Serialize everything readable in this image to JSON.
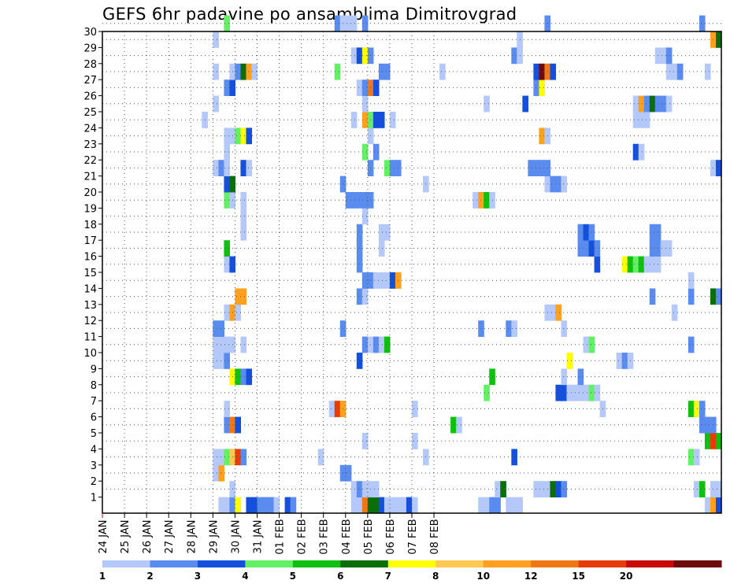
{
  "colors": {
    "1": "#b4c8fa",
    "2": "#5a8cf0",
    "3": "#1450dc",
    "4": "#64f064",
    "5": "#10c010",
    "6": "#0a6e0a",
    "7": "#ffff00",
    "8": "#ffc850",
    "9": "#ffa020",
    "10": "#f07814",
    "11": "#e63c0a",
    "12": "#c80a0a",
    "13": "#6e0a0a"
  },
  "chart_data": {
    "type": "heatmap",
    "title": "GEFS 6hr padavine po ansamblima Dimitrovgrad",
    "xlabel": "",
    "ylabel": "",
    "x_tick_labels": [
      "24 JAN",
      "25 JAN",
      "26 JAN",
      "27 JAN",
      "28 JAN",
      "29 JAN",
      "30 JAN",
      "31 JAN",
      "01 FEB",
      "02 FEB",
      "03 FEB",
      "04 FEB",
      "05 FEB",
      "06 FEB",
      "07 FEB",
      "08 FEB"
    ],
    "y_tick_labels": [
      "1",
      "2",
      "3",
      "4",
      "5",
      "6",
      "7",
      "8",
      "9",
      "10",
      "11",
      "12",
      "13",
      "14",
      "15",
      "16",
      "17",
      "18",
      "19",
      "20",
      "21",
      "22",
      "23",
      "24",
      "25",
      "26",
      "27",
      "28",
      "29",
      "30"
    ],
    "colorbar": {
      "thresholds": [
        "1",
        "2",
        "3",
        "4",
        "5",
        "6",
        "7",
        "8",
        "10",
        "12",
        "15",
        "20"
      ]
    },
    "grid": true,
    "cell_note": "each cell = one 6-hour step (index 0 = 24 JAN 00z) for one ensemble member; value = color class (1..13) per colorbar",
    "cells": [
      [
        0,
        21,
        1
      ],
      [
        0,
        22,
        1
      ],
      [
        0,
        23,
        2
      ],
      [
        0,
        24,
        7
      ],
      [
        0,
        26,
        3
      ],
      [
        0,
        27,
        3
      ],
      [
        0,
        28,
        2
      ],
      [
        0,
        29,
        2
      ],
      [
        0,
        30,
        2
      ],
      [
        0,
        31,
        1
      ],
      [
        0,
        33,
        3
      ],
      [
        0,
        34,
        2
      ],
      [
        0,
        45,
        1
      ],
      [
        0,
        46,
        1
      ],
      [
        0,
        47,
        10
      ],
      [
        0,
        48,
        6
      ],
      [
        0,
        49,
        6
      ],
      [
        0,
        50,
        3
      ],
      [
        0,
        51,
        1
      ],
      [
        0,
        52,
        1
      ],
      [
        0,
        53,
        1
      ],
      [
        0,
        54,
        1
      ],
      [
        0,
        55,
        3
      ],
      [
        0,
        56,
        1
      ],
      [
        0,
        68,
        1
      ],
      [
        0,
        69,
        1
      ],
      [
        0,
        70,
        2
      ],
      [
        0,
        71,
        2
      ],
      [
        0,
        73,
        1
      ],
      [
        0,
        74,
        1
      ],
      [
        0,
        75,
        1
      ],
      [
        0,
        109,
        1
      ],
      [
        0,
        110,
        9
      ],
      [
        0,
        111,
        3
      ],
      [
        1,
        23,
        1
      ],
      [
        1,
        45,
        1
      ],
      [
        1,
        46,
        2
      ],
      [
        1,
        47,
        1
      ],
      [
        1,
        48,
        1
      ],
      [
        1,
        49,
        1
      ],
      [
        1,
        71,
        1
      ],
      [
        1,
        72,
        6
      ],
      [
        1,
        78,
        1
      ],
      [
        1,
        79,
        1
      ],
      [
        1,
        80,
        1
      ],
      [
        1,
        81,
        6
      ],
      [
        1,
        82,
        3
      ],
      [
        1,
        83,
        2
      ],
      [
        1,
        107,
        1
      ],
      [
        1,
        108,
        5
      ],
      [
        1,
        110,
        1
      ],
      [
        1,
        111,
        1
      ],
      [
        2,
        20,
        1
      ],
      [
        2,
        21,
        9
      ],
      [
        2,
        43,
        2
      ],
      [
        2,
        44,
        2
      ],
      [
        3,
        20,
        1
      ],
      [
        3,
        21,
        1
      ],
      [
        3,
        22,
        4
      ],
      [
        3,
        23,
        8
      ],
      [
        3,
        24,
        11
      ],
      [
        3,
        25,
        2
      ],
      [
        3,
        39,
        1
      ],
      [
        3,
        58,
        1
      ],
      [
        3,
        74,
        3
      ],
      [
        3,
        106,
        4
      ],
      [
        3,
        107,
        1
      ],
      [
        4,
        47,
        1
      ],
      [
        4,
        56,
        1
      ],
      [
        4,
        109,
        5
      ],
      [
        4,
        110,
        11
      ],
      [
        4,
        111,
        5
      ],
      [
        5,
        22,
        2
      ],
      [
        5,
        23,
        10
      ],
      [
        5,
        24,
        3
      ],
      [
        5,
        63,
        5
      ],
      [
        5,
        64,
        1
      ],
      [
        5,
        108,
        2
      ],
      [
        5,
        109,
        2
      ],
      [
        5,
        110,
        2
      ],
      [
        6,
        22,
        1
      ],
      [
        6,
        41,
        1
      ],
      [
        6,
        42,
        11
      ],
      [
        6,
        43,
        9
      ],
      [
        6,
        56,
        1
      ],
      [
        6,
        90,
        1
      ],
      [
        6,
        106,
        5
      ],
      [
        6,
        107,
        7
      ],
      [
        6,
        108,
        2
      ],
      [
        7,
        69,
        4
      ],
      [
        7,
        82,
        3
      ],
      [
        7,
        83,
        3
      ],
      [
        7,
        84,
        1
      ],
      [
        7,
        85,
        1
      ],
      [
        7,
        86,
        1
      ],
      [
        7,
        87,
        1
      ],
      [
        7,
        88,
        4
      ],
      [
        7,
        89,
        1
      ],
      [
        8,
        23,
        7
      ],
      [
        8,
        24,
        5
      ],
      [
        8,
        25,
        2
      ],
      [
        8,
        26,
        3
      ],
      [
        8,
        70,
        5
      ],
      [
        8,
        83,
        1
      ],
      [
        8,
        86,
        2
      ],
      [
        9,
        20,
        1
      ],
      [
        9,
        21,
        1
      ],
      [
        9,
        22,
        2
      ],
      [
        9,
        46,
        3
      ],
      [
        9,
        84,
        7
      ],
      [
        9,
        93,
        1
      ],
      [
        9,
        94,
        2
      ],
      [
        9,
        95,
        1
      ],
      [
        10,
        20,
        1
      ],
      [
        10,
        21,
        1
      ],
      [
        10,
        22,
        1
      ],
      [
        10,
        23,
        1
      ],
      [
        10,
        25,
        1
      ],
      [
        10,
        47,
        2
      ],
      [
        10,
        48,
        1
      ],
      [
        10,
        49,
        2
      ],
      [
        10,
        50,
        1
      ],
      [
        10,
        51,
        5
      ],
      [
        10,
        87,
        1
      ],
      [
        10,
        88,
        4
      ],
      [
        10,
        106,
        2
      ],
      [
        11,
        20,
        2
      ],
      [
        11,
        21,
        2
      ],
      [
        11,
        43,
        2
      ],
      [
        11,
        68,
        2
      ],
      [
        11,
        73,
        2
      ],
      [
        11,
        74,
        1
      ],
      [
        11,
        83,
        1
      ],
      [
        12,
        22,
        1
      ],
      [
        12,
        23,
        9
      ],
      [
        12,
        24,
        1
      ],
      [
        12,
        80,
        1
      ],
      [
        12,
        81,
        1
      ],
      [
        12,
        82,
        9
      ],
      [
        12,
        103,
        1
      ],
      [
        13,
        24,
        9
      ],
      [
        13,
        25,
        9
      ],
      [
        13,
        46,
        2
      ],
      [
        13,
        47,
        1
      ],
      [
        13,
        99,
        2
      ],
      [
        13,
        106,
        2
      ],
      [
        13,
        110,
        6
      ],
      [
        13,
        111,
        2
      ],
      [
        14,
        47,
        2
      ],
      [
        14,
        48,
        2
      ],
      [
        14,
        49,
        1
      ],
      [
        14,
        50,
        1
      ],
      [
        14,
        51,
        1
      ],
      [
        14,
        52,
        3
      ],
      [
        14,
        53,
        9
      ],
      [
        14,
        106,
        1
      ],
      [
        15,
        22,
        1
      ],
      [
        15,
        23,
        3
      ],
      [
        15,
        46,
        2
      ],
      [
        15,
        89,
        3
      ],
      [
        15,
        94,
        7
      ],
      [
        15,
        95,
        5
      ],
      [
        15,
        96,
        4
      ],
      [
        15,
        97,
        5
      ],
      [
        15,
        98,
        1
      ],
      [
        15,
        99,
        1
      ],
      [
        15,
        100,
        1
      ],
      [
        16,
        22,
        5
      ],
      [
        16,
        46,
        2
      ],
      [
        16,
        50,
        1
      ],
      [
        16,
        86,
        2
      ],
      [
        16,
        87,
        2
      ],
      [
        16,
        88,
        3
      ],
      [
        16,
        89,
        2
      ],
      [
        16,
        99,
        2
      ],
      [
        16,
        100,
        2
      ],
      [
        16,
        101,
        1
      ],
      [
        16,
        102,
        1
      ],
      [
        17,
        25,
        1
      ],
      [
        17,
        46,
        2
      ],
      [
        17,
        50,
        1
      ],
      [
        17,
        51,
        1
      ],
      [
        17,
        86,
        2
      ],
      [
        17,
        87,
        3
      ],
      [
        17,
        88,
        2
      ],
      [
        17,
        99,
        2
      ],
      [
        17,
        100,
        2
      ],
      [
        18,
        25,
        1
      ],
      [
        18,
        47,
        1
      ],
      [
        19,
        22,
        4
      ],
      [
        19,
        23,
        1
      ],
      [
        19,
        25,
        1
      ],
      [
        19,
        44,
        2
      ],
      [
        19,
        45,
        2
      ],
      [
        19,
        46,
        2
      ],
      [
        19,
        47,
        2
      ],
      [
        19,
        48,
        2
      ],
      [
        19,
        67,
        1
      ],
      [
        19,
        68,
        9
      ],
      [
        19,
        69,
        5
      ],
      [
        19,
        70,
        1
      ],
      [
        20,
        22,
        3
      ],
      [
        20,
        23,
        6
      ],
      [
        20,
        43,
        2
      ],
      [
        20,
        58,
        1
      ],
      [
        20,
        80,
        1
      ],
      [
        20,
        81,
        2
      ],
      [
        20,
        82,
        2
      ],
      [
        20,
        83,
        1
      ],
      [
        21,
        20,
        1
      ],
      [
        21,
        21,
        2
      ],
      [
        21,
        22,
        1
      ],
      [
        21,
        25,
        3
      ],
      [
        21,
        26,
        1
      ],
      [
        21,
        48,
        2
      ],
      [
        21,
        51,
        4
      ],
      [
        21,
        52,
        2
      ],
      [
        21,
        53,
        2
      ],
      [
        21,
        77,
        2
      ],
      [
        21,
        78,
        2
      ],
      [
        21,
        79,
        2
      ],
      [
        21,
        80,
        2
      ],
      [
        21,
        110,
        1
      ],
      [
        21,
        111,
        3
      ],
      [
        22,
        22,
        1
      ],
      [
        22,
        47,
        4
      ],
      [
        22,
        49,
        2
      ],
      [
        22,
        96,
        3
      ],
      [
        22,
        97,
        1
      ],
      [
        23,
        22,
        1
      ],
      [
        23,
        23,
        1
      ],
      [
        23,
        24,
        4
      ],
      [
        23,
        25,
        7
      ],
      [
        23,
        26,
        3
      ],
      [
        23,
        48,
        1
      ],
      [
        23,
        79,
        9
      ],
      [
        23,
        80,
        1
      ],
      [
        24,
        18,
        1
      ],
      [
        24,
        45,
        1
      ],
      [
        24,
        47,
        9
      ],
      [
        24,
        48,
        4
      ],
      [
        24,
        49,
        3
      ],
      [
        24,
        50,
        3
      ],
      [
        24,
        52,
        1
      ],
      [
        24,
        96,
        1
      ],
      [
        24,
        97,
        1
      ],
      [
        24,
        98,
        1
      ],
      [
        25,
        20,
        1
      ],
      [
        25,
        47,
        1
      ],
      [
        25,
        69,
        1
      ],
      [
        25,
        76,
        3
      ],
      [
        25,
        96,
        1
      ],
      [
        25,
        97,
        9
      ],
      [
        25,
        98,
        2
      ],
      [
        25,
        99,
        6
      ],
      [
        25,
        100,
        2
      ],
      [
        25,
        101,
        2
      ],
      [
        25,
        102,
        1
      ],
      [
        26,
        22,
        2
      ],
      [
        26,
        23,
        3
      ],
      [
        26,
        46,
        1
      ],
      [
        26,
        47,
        2
      ],
      [
        26,
        48,
        10
      ],
      [
        26,
        49,
        3
      ],
      [
        26,
        78,
        2
      ],
      [
        26,
        79,
        7
      ],
      [
        27,
        20,
        1
      ],
      [
        27,
        23,
        1
      ],
      [
        27,
        24,
        2
      ],
      [
        27,
        25,
        6
      ],
      [
        27,
        26,
        9
      ],
      [
        27,
        27,
        1
      ],
      [
        27,
        42,
        4
      ],
      [
        27,
        50,
        2
      ],
      [
        27,
        51,
        2
      ],
      [
        27,
        61,
        1
      ],
      [
        27,
        78,
        3
      ],
      [
        27,
        79,
        13
      ],
      [
        27,
        80,
        10
      ],
      [
        27,
        81,
        3
      ],
      [
        27,
        102,
        1
      ],
      [
        27,
        103,
        1
      ],
      [
        27,
        104,
        2
      ],
      [
        27,
        109,
        1
      ],
      [
        28,
        45,
        1
      ],
      [
        28,
        46,
        3
      ],
      [
        28,
        47,
        7
      ],
      [
        28,
        48,
        2
      ],
      [
        28,
        74,
        2
      ],
      [
        28,
        75,
        1
      ],
      [
        28,
        100,
        1
      ],
      [
        28,
        101,
        1
      ],
      [
        28,
        102,
        2
      ],
      [
        29,
        20,
        1
      ],
      [
        29,
        75,
        1
      ],
      [
        29,
        110,
        9
      ],
      [
        29,
        111,
        6
      ],
      [
        30,
        22,
        4
      ],
      [
        30,
        42,
        2
      ],
      [
        30,
        43,
        1
      ],
      [
        30,
        44,
        1
      ],
      [
        30,
        45,
        1
      ],
      [
        30,
        47,
        2
      ],
      [
        30,
        80,
        2
      ],
      [
        30,
        108,
        2
      ]
    ]
  }
}
